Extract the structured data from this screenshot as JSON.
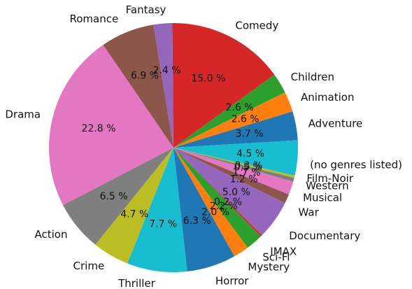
{
  "chart_data": {
    "type": "pie",
    "title": "",
    "slices": [
      {
        "label": "Comedy",
        "value": 15.0,
        "pct_label": "15.0 %",
        "color": "#d62728"
      },
      {
        "label": "Children",
        "value": 2.6,
        "pct_label": "2.6 %",
        "color": "#2ca02c"
      },
      {
        "label": "Animation",
        "value": 2.6,
        "pct_label": "2.6 %",
        "color": "#ff7f0e"
      },
      {
        "label": "Adventure",
        "value": 3.7,
        "pct_label": "3.7 %",
        "color": "#1f77b4"
      },
      {
        "label": "(no genres listed)",
        "value": 4.5,
        "pct_label": "4.5 %",
        "color": "#17becf"
      },
      {
        "label": "Film-Noir",
        "value": 0.3,
        "pct_label": "0.3 %",
        "color": "#bcbd22"
      },
      {
        "label": "Western",
        "value": 0.5,
        "pct_label": "0.5 %",
        "color": "#7f7f7f"
      },
      {
        "label": "Musical",
        "value": 1.7,
        "pct_label": "1.7 %",
        "color": "#e377c2"
      },
      {
        "label": "War",
        "value": 1.2,
        "pct_label": "1.2 %",
        "color": "#8c564b"
      },
      {
        "label": "Documentary",
        "value": 5.0,
        "pct_label": "5.0 %",
        "color": "#9467bd"
      },
      {
        "label": "IMAX",
        "value": 0.2,
        "pct_label": "0.2 %",
        "color": "#d62728"
      },
      {
        "label": "Sci-Fi",
        "value": 2.2,
        "pct_label": "2.2 %",
        "color": "#2ca02c"
      },
      {
        "label": "Mystery",
        "value": 2.0,
        "pct_label": "2.0 %",
        "color": "#ff7f0e"
      },
      {
        "label": "Horror",
        "value": 6.3,
        "pct_label": "6.3 %",
        "color": "#1f77b4"
      },
      {
        "label": "Thriller",
        "value": 7.7,
        "pct_label": "7.7 %",
        "color": "#17becf"
      },
      {
        "label": "Crime",
        "value": 4.7,
        "pct_label": "4.7 %",
        "color": "#bcbd22"
      },
      {
        "label": "Action",
        "value": 6.5,
        "pct_label": "6.5 %",
        "color": "#7f7f7f"
      },
      {
        "label": "Drama",
        "value": 22.8,
        "pct_label": "22.8 %",
        "color": "#e377c2"
      },
      {
        "label": "Romance",
        "value": 6.9,
        "pct_label": "6.9 %",
        "color": "#8c564b"
      },
      {
        "label": "Fantasy",
        "value": 2.4,
        "pct_label": "2.4 %",
        "color": "#9467bd"
      }
    ]
  }
}
